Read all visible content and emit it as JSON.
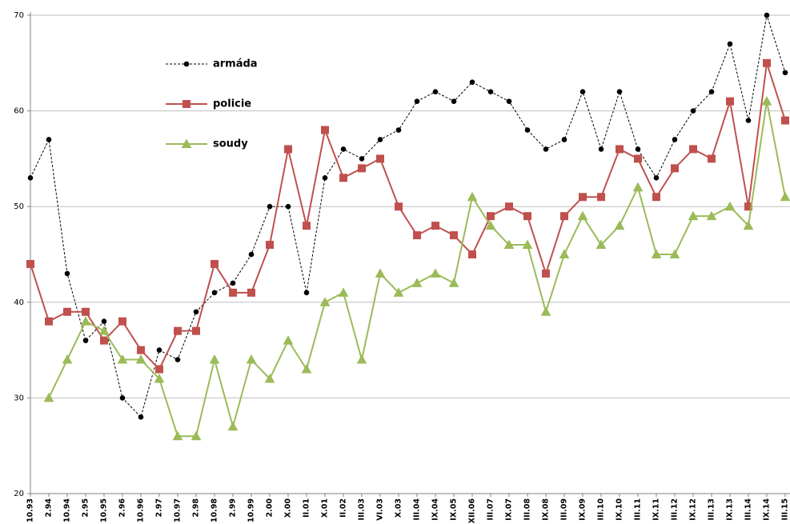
{
  "chart_data": {
    "type": "line",
    "categories": [
      "10.93",
      "2.94",
      "10.94",
      "2.95",
      "10.95",
      "2.96",
      "10.96",
      "2.97",
      "10.97",
      "2.98",
      "10.98",
      "2.99",
      "10.99",
      "2.00",
      "X.00",
      "II.01",
      "X.01",
      "II.02",
      "III.03",
      "VI.03",
      "X.03",
      "III.04",
      "IX.04",
      "IX.05",
      "XII.06",
      "III.07",
      "IX.07",
      "III.08",
      "IX.08",
      "III.09",
      "IX.09",
      "III.10",
      "IX.10",
      "III.11",
      "IX.11",
      "III.12",
      "IX.12",
      "III.13",
      "IX.13",
      "III.14",
      "IX.14",
      "III.15"
    ],
    "series": [
      {
        "name": "armáda",
        "color": "#000000",
        "marker": "circle",
        "linestyle": "dashed",
        "values": [
          53,
          57,
          43,
          36,
          38,
          30,
          28,
          35,
          34,
          39,
          41,
          42,
          45,
          50,
          50,
          41,
          53,
          56,
          55,
          57,
          58,
          61,
          62,
          61,
          63,
          62,
          61,
          58,
          56,
          57,
          62,
          56,
          62,
          56,
          53,
          57,
          60,
          62,
          67,
          59,
          70,
          64
        ]
      },
      {
        "name": "policie",
        "color": "#c0504d",
        "marker": "square",
        "linestyle": "solid",
        "values": [
          44,
          38,
          39,
          39,
          36,
          38,
          35,
          33,
          37,
          37,
          44,
          41,
          41,
          46,
          56,
          48,
          58,
          53,
          54,
          55,
          50,
          47,
          48,
          47,
          45,
          49,
          50,
          49,
          43,
          49,
          51,
          51,
          56,
          55,
          51,
          54,
          56,
          55,
          61,
          50,
          65,
          59
        ]
      },
      {
        "name": "soudy",
        "color": "#9bbb59",
        "marker": "triangle",
        "linestyle": "solid",
        "values": [
          null,
          30,
          34,
          38,
          37,
          34,
          34,
          32,
          26,
          26,
          34,
          27,
          34,
          32,
          36,
          33,
          40,
          41,
          34,
          43,
          41,
          42,
          43,
          42,
          51,
          48,
          46,
          46,
          39,
          45,
          49,
          46,
          48,
          52,
          45,
          45,
          49,
          49,
          50,
          48,
          61,
          51
        ]
      }
    ],
    "ylim": [
      20,
      70
    ],
    "yticks": [
      20,
      30,
      40,
      50,
      60,
      70
    ],
    "grid": true,
    "legend": "upper left"
  }
}
